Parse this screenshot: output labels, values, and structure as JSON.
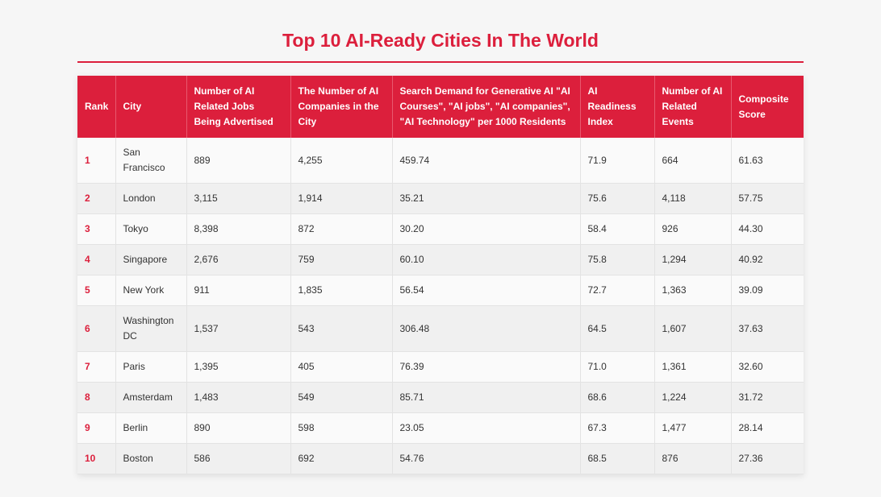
{
  "title": "Top 10 AI-Ready Cities In The World",
  "table": {
    "headers": [
      "Rank",
      "City",
      "Number of AI Related Jobs Being Advertised",
      "The Number of AI Companies in the City",
      "Search Demand for Generative AI \"AI Courses\", \"AI jobs\", \"AI companies\", \"AI Technology\" per 1000 Residents",
      "AI Readiness Index",
      "Number of AI Related Events",
      "Composite Score"
    ],
    "rows": [
      {
        "rank": "1",
        "city": "San Francisco",
        "jobs": "889",
        "companies": "4,255",
        "search": "459.74",
        "readiness": "71.9",
        "events": "664",
        "score": "61.63"
      },
      {
        "rank": "2",
        "city": "London",
        "jobs": "3,115",
        "companies": "1,914",
        "search": "35.21",
        "readiness": "75.6",
        "events": "4,118",
        "score": "57.75"
      },
      {
        "rank": "3",
        "city": "Tokyo",
        "jobs": "8,398",
        "companies": "872",
        "search": "30.20",
        "readiness": "58.4",
        "events": "926",
        "score": "44.30"
      },
      {
        "rank": "4",
        "city": "Singapore",
        "jobs": "2,676",
        "companies": "759",
        "search": "60.10",
        "readiness": "75.8",
        "events": "1,294",
        "score": "40.92"
      },
      {
        "rank": "5",
        "city": "New York",
        "jobs": "911",
        "companies": "1,835",
        "search": "56.54",
        "readiness": "72.7",
        "events": "1,363",
        "score": "39.09"
      },
      {
        "rank": "6",
        "city": "Washington DC",
        "jobs": "1,537",
        "companies": "543",
        "search": "306.48",
        "readiness": "64.5",
        "events": "1,607",
        "score": "37.63"
      },
      {
        "rank": "7",
        "city": "Paris",
        "jobs": "1,395",
        "companies": "405",
        "search": "76.39",
        "readiness": "71.0",
        "events": "1,361",
        "score": "32.60"
      },
      {
        "rank": "8",
        "city": "Amsterdam",
        "jobs": "1,483",
        "companies": "549",
        "search": "85.71",
        "readiness": "68.6",
        "events": "1,224",
        "score": "31.72"
      },
      {
        "rank": "9",
        "city": "Berlin",
        "jobs": "890",
        "companies": "598",
        "search": "23.05",
        "readiness": "67.3",
        "events": "1,477",
        "score": "28.14"
      },
      {
        "rank": "10",
        "city": "Boston",
        "jobs": "586",
        "companies": "692",
        "search": "54.76",
        "readiness": "68.5",
        "events": "876",
        "score": "27.36"
      }
    ]
  },
  "colors": {
    "accent": "#dc1f3c",
    "row_odd": "#fafafa",
    "row_even": "#f0f0f0",
    "background": "#f6f6f6"
  }
}
